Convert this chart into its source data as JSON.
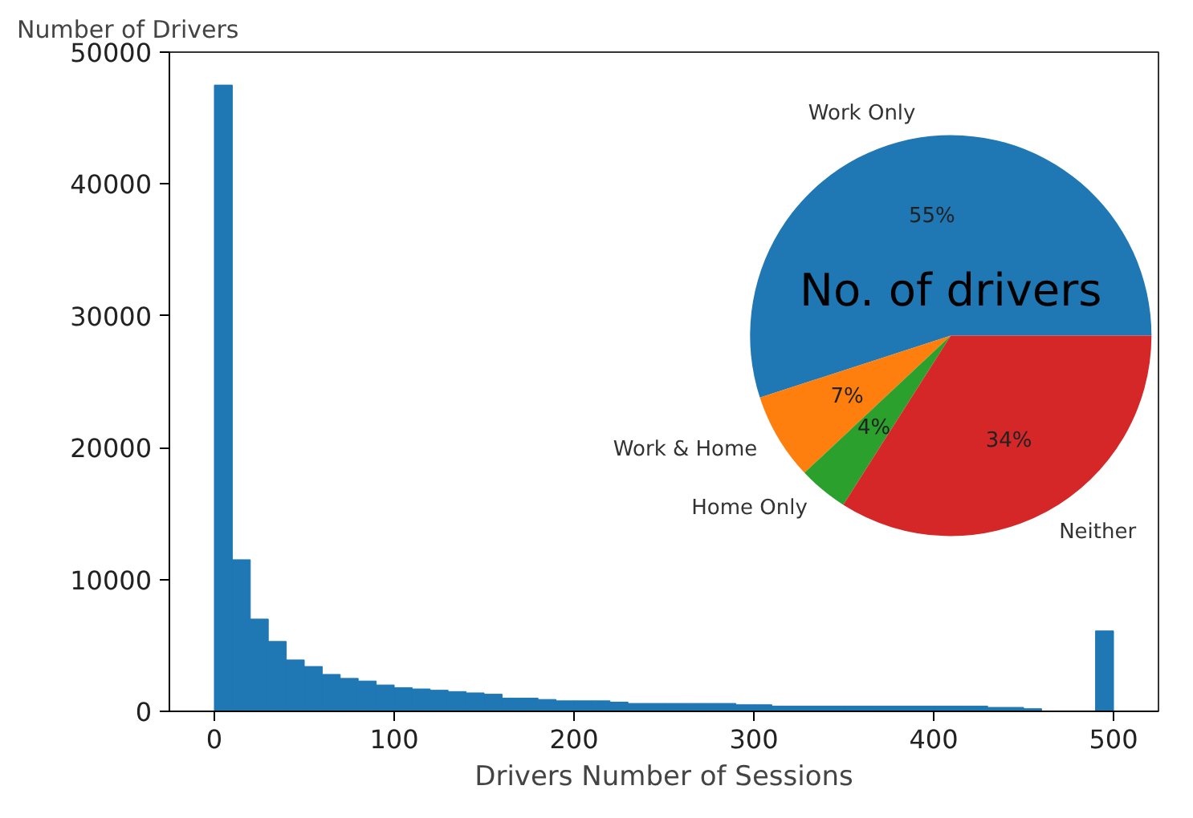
{
  "chart_data": [
    {
      "type": "histogram",
      "ylabel": "Number of Drivers",
      "xlabel": "Drivers Number of Sessions",
      "color": "#1f77b4",
      "bins": [
        0,
        10,
        20,
        30,
        40,
        50,
        60,
        70,
        80,
        90,
        100,
        110,
        120,
        130,
        140,
        150,
        160,
        170,
        180,
        190,
        200,
        210,
        220,
        230,
        240,
        250,
        260,
        270,
        280,
        290,
        300,
        310,
        320,
        330,
        340,
        350,
        360,
        370,
        380,
        390,
        400,
        410,
        420,
        430,
        440,
        450,
        460,
        470,
        480,
        490,
        500
      ],
      "values": [
        47500,
        11500,
        7000,
        5300,
        3900,
        3400,
        2800,
        2500,
        2300,
        2000,
        1800,
        1700,
        1600,
        1500,
        1400,
        1300,
        1000,
        1000,
        900,
        800,
        800,
        800,
        700,
        600,
        600,
        600,
        600,
        600,
        600,
        500,
        500,
        400,
        400,
        400,
        400,
        400,
        400,
        400,
        400,
        400,
        400,
        400,
        400,
        300,
        300,
        200,
        null,
        null,
        null,
        6100
      ],
      "xlim": [
        -25,
        525
      ],
      "ylim": [
        0,
        50000
      ],
      "xticks": [
        0,
        100,
        200,
        300,
        400,
        500
      ],
      "yticks": [
        0,
        10000,
        20000,
        30000,
        40000,
        50000
      ],
      "grid": false
    },
    {
      "type": "pie",
      "title": "No. of drivers",
      "categories": [
        "Work Only",
        "Work & Home",
        "Home Only",
        "Neither"
      ],
      "values": [
        55,
        7,
        4,
        34
      ],
      "colors": [
        "#1f77b4",
        "#ff7f0e",
        "#2ca02c",
        "#d62728"
      ],
      "value_labels": [
        "55%",
        "7%",
        "4%",
        "34%"
      ]
    }
  ]
}
